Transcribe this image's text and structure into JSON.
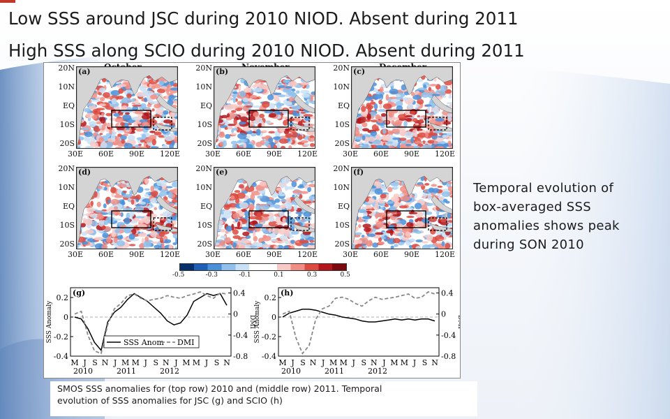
{
  "slide": {
    "title_line1": "Low SSS around JSC during 2010 NIOD. Absent during 2011",
    "title_line2": "High SSS along SCIO during 2010 NIOD. Absent during 2011",
    "side_text": "Temporal evolution of box-averaged SSS anomalies shows peak during SON 2010",
    "caption_line1": "SMOS SSS anomalies for (top row) 2010 and (middle row) 2011. Temporal",
    "caption_line2": "evolution of SSS anomalies for JSC (g) and SCIO (h)"
  },
  "figure": {
    "column_headers": [
      "October",
      "November",
      "December"
    ],
    "panels": [
      {
        "label": "(a)",
        "intensity": 0.35,
        "seed": 3
      },
      {
        "label": "(b)",
        "intensity": 0.65,
        "seed": 7
      },
      {
        "label": "(c)",
        "intensity": 0.75,
        "seed": 11
      },
      {
        "label": "(d)",
        "intensity": 0.35,
        "seed": 13
      },
      {
        "label": "(e)",
        "intensity": 0.45,
        "seed": 17
      },
      {
        "label": "(f)",
        "intensity": 0.5,
        "seed": 19
      }
    ],
    "lat_ticks": [
      "20N",
      "10N",
      "EQ",
      "10S",
      "20S"
    ],
    "lon_ticks": [
      "30E",
      "60E",
      "90E",
      "120E"
    ],
    "colorbar": {
      "ticks": [
        "-0.5",
        "-0.3",
        "-0.1",
        "0.1",
        "0.3",
        "0.5"
      ],
      "colors": [
        "#08306b",
        "#1f5fb5",
        "#4a90d9",
        "#8fc1ec",
        "#c9e1f6",
        "#ffffff",
        "#ffffff",
        "#f8c9c6",
        "#f08e86",
        "#dc4a40",
        "#b3161b",
        "#7a0a0e"
      ]
    }
  },
  "chart_data": [
    {
      "type": "line",
      "panel": "(g)",
      "ylabel": "SSS Anomaly",
      "y2label": "DMI",
      "ylim": [
        -0.4,
        0.3
      ],
      "y2lim": [
        -0.8,
        0.5
      ],
      "yticks": [
        "0.2",
        "0",
        "-0.2",
        "-0.4"
      ],
      "y2ticks": [
        "0.4",
        "0",
        "-0.4",
        "-0.8"
      ],
      "month_labels": [
        "M",
        "J",
        "S",
        "N",
        "J",
        "M",
        "M",
        "J",
        "S",
        "N",
        "J",
        "M",
        "M",
        "J",
        "S",
        "N"
      ],
      "year_labels": [
        "2010",
        "2011",
        "2012"
      ],
      "legend": [
        "SSS Anom",
        "DMI"
      ],
      "series": [
        {
          "name": "SSS Anom",
          "style": "solid",
          "axis": "left",
          "values": [
            0.0,
            -0.02,
            -0.12,
            -0.26,
            -0.34,
            -0.05,
            0.05,
            0.1,
            0.18,
            0.24,
            0.2,
            0.16,
            0.1,
            0.04,
            -0.04,
            -0.08,
            -0.06,
            0.02,
            0.16,
            0.2,
            0.24,
            0.22,
            0.24,
            0.12
          ]
        },
        {
          "name": "DMI",
          "style": "dashed",
          "axis": "right",
          "values": [
            0.0,
            0.05,
            -0.4,
            -0.7,
            -0.75,
            -0.2,
            0.1,
            0.2,
            0.35,
            0.38,
            0.3,
            0.25,
            0.28,
            0.3,
            0.35,
            0.32,
            0.3,
            0.35,
            0.38,
            0.42,
            0.35,
            0.3,
            0.4,
            0.38
          ]
        }
      ]
    },
    {
      "type": "line",
      "panel": "(h)",
      "ylabel": "SSS Anomaly",
      "y2label": "DMI",
      "ylim": [
        -0.4,
        0.3
      ],
      "y2lim": [
        -0.8,
        0.5
      ],
      "yticks": [
        "0.2",
        "0",
        "-0.2",
        "-0.4"
      ],
      "y2ticks": [
        "0.4",
        "0",
        "-0.4",
        "-0.8"
      ],
      "month_labels": [
        "M",
        "J",
        "S",
        "N",
        "J",
        "M",
        "M",
        "J",
        "S",
        "N",
        "J",
        "M",
        "M",
        "J",
        "S",
        "N"
      ],
      "year_labels": [
        "2010",
        "2011",
        "2012"
      ],
      "series": [
        {
          "name": "SSS Anom",
          "style": "solid",
          "axis": "left",
          "values": [
            0.0,
            0.04,
            0.06,
            0.08,
            0.08,
            0.07,
            0.05,
            0.03,
            0.02,
            0.0,
            -0.01,
            -0.02,
            -0.04,
            -0.05,
            -0.05,
            -0.04,
            -0.03,
            -0.02,
            -0.03,
            -0.02,
            -0.03,
            -0.02,
            -0.02,
            -0.04
          ]
        },
        {
          "name": "DMI",
          "style": "dashed",
          "axis": "right",
          "values": [
            0.0,
            0.05,
            -0.45,
            -0.75,
            -0.6,
            -0.1,
            0.1,
            0.15,
            0.3,
            0.32,
            0.28,
            0.2,
            0.15,
            0.25,
            0.32,
            0.28,
            0.3,
            0.32,
            0.35,
            0.38,
            0.3,
            0.32,
            0.42,
            0.38
          ]
        }
      ]
    }
  ]
}
